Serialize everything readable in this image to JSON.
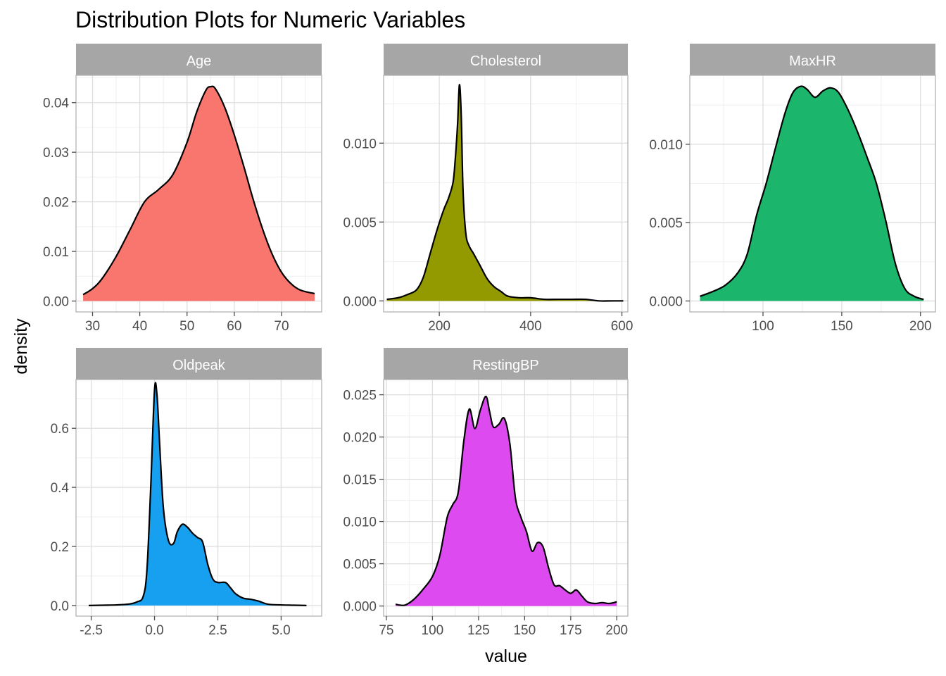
{
  "title": "Distribution Plots for Numeric Variables",
  "xlabel": "value",
  "ylabel": "density",
  "colors": {
    "strip_bg": "#a6a6a6",
    "panel_border": "#b3b3b3",
    "grid_major": "#dedede",
    "grid_minor": "#efefef",
    "curve": "#000000"
  },
  "chart_data": [
    {
      "type": "area",
      "name": "Age",
      "color": "#F8766D",
      "xlim": [
        26.5,
        78.5
      ],
      "ylim": [
        -0.0022,
        0.0455
      ],
      "x_ticks": [
        30,
        40,
        50,
        60,
        70
      ],
      "x_tick_labels": [
        "30",
        "40",
        "50",
        "60",
        "70"
      ],
      "y_ticks": [
        0,
        0.01,
        0.02,
        0.03,
        0.04
      ],
      "y_tick_labels": [
        "0.00",
        "0.01",
        "0.02",
        "0.03",
        "0.04"
      ],
      "x": [
        28,
        30,
        32,
        35,
        38,
        41,
        44,
        47,
        50,
        52,
        54,
        55,
        56,
        58,
        60,
        62,
        64,
        66,
        68,
        70,
        72,
        74,
        77
      ],
      "y": [
        0.0013,
        0.0025,
        0.0045,
        0.009,
        0.0145,
        0.02,
        0.0225,
        0.0255,
        0.032,
        0.038,
        0.0425,
        0.0432,
        0.0428,
        0.039,
        0.0335,
        0.0272,
        0.0205,
        0.0145,
        0.0095,
        0.0058,
        0.0035,
        0.0022,
        0.0015
      ]
    },
    {
      "type": "area",
      "name": "Cholesterol",
      "color": "#939A00",
      "xlim": [
        78,
        613
      ],
      "ylim": [
        -0.0007,
        0.0143
      ],
      "x_ticks": [
        200,
        400,
        600
      ],
      "x_tick_labels": [
        "200",
        "400",
        "600"
      ],
      "y_ticks": [
        0,
        0.005,
        0.01
      ],
      "y_tick_labels": [
        "0.000",
        "0.005",
        "0.010"
      ],
      "x": [
        85,
        110,
        130,
        150,
        165,
        180,
        195,
        210,
        220,
        230,
        235,
        240,
        244,
        248,
        252,
        258,
        265,
        275,
        290,
        305,
        320,
        335,
        350,
        375,
        400,
        430,
        460,
        490,
        520,
        550,
        580,
        603
      ],
      "y": [
        0.0001,
        0.0002,
        0.0004,
        0.0007,
        0.0015,
        0.003,
        0.0045,
        0.0058,
        0.0065,
        0.0075,
        0.009,
        0.0112,
        0.0137,
        0.0118,
        0.007,
        0.0043,
        0.0035,
        0.003,
        0.0022,
        0.0014,
        0.0009,
        0.0006,
        0.0003,
        0.0002,
        0.0002,
        0.0001,
        0.0001,
        0.0001,
        0.0001,
        0.0,
        0.0,
        0.0
      ]
    },
    {
      "type": "area",
      "name": "MaxHR",
      "color": "#1BB56C",
      "xlim": [
        53.5,
        209.5
      ],
      "ylim": [
        -0.0007,
        0.0144
      ],
      "x_ticks": [
        100,
        150,
        200
      ],
      "x_tick_labels": [
        "100",
        "150",
        "200"
      ],
      "y_ticks": [
        0,
        0.005,
        0.01
      ],
      "y_tick_labels": [
        "0.000",
        "0.005",
        "0.010"
      ],
      "x": [
        60,
        68,
        76,
        84,
        90,
        96,
        102,
        108,
        114,
        119,
        124,
        128,
        133,
        138,
        143,
        148,
        154,
        160,
        166,
        172,
        178,
        184,
        190,
        196,
        202
      ],
      "y": [
        0.0003,
        0.0006,
        0.001,
        0.0018,
        0.003,
        0.0055,
        0.0075,
        0.0098,
        0.012,
        0.0133,
        0.0137,
        0.0135,
        0.013,
        0.0134,
        0.0136,
        0.0133,
        0.0122,
        0.0108,
        0.0092,
        0.0075,
        0.0051,
        0.0024,
        0.0008,
        0.0003,
        0.0001
      ]
    },
    {
      "type": "area",
      "name": "Oldpeak",
      "color": "#17A0F0",
      "xlim": [
        -3.1,
        6.6
      ],
      "ylim": [
        -0.036,
        0.765
      ],
      "x_ticks": [
        -2.5,
        0,
        2.5,
        5
      ],
      "x_tick_labels": [
        "-2.5",
        "0.0",
        "2.5",
        "5.0"
      ],
      "y_ticks": [
        0,
        0.2,
        0.4,
        0.6
      ],
      "y_tick_labels": [
        "0.0",
        "0.2",
        "0.4",
        "0.6"
      ],
      "x": [
        -2.6,
        -2.0,
        -1.5,
        -1.0,
        -0.7,
        -0.45,
        -0.3,
        -0.15,
        0.0,
        0.1,
        0.2,
        0.35,
        0.55,
        0.75,
        0.9,
        1.1,
        1.3,
        1.5,
        1.7,
        1.9,
        2.1,
        2.3,
        2.5,
        2.8,
        3.0,
        3.2,
        3.5,
        3.8,
        4.1,
        4.5,
        5.0,
        5.5,
        6.0
      ],
      "y": [
        0.0,
        0.001,
        0.002,
        0.005,
        0.012,
        0.03,
        0.12,
        0.4,
        0.73,
        0.71,
        0.55,
        0.33,
        0.22,
        0.21,
        0.25,
        0.275,
        0.265,
        0.245,
        0.23,
        0.215,
        0.14,
        0.09,
        0.078,
        0.078,
        0.06,
        0.04,
        0.025,
        0.021,
        0.015,
        0.004,
        0.002,
        0.001,
        0.0
      ]
    },
    {
      "type": "area",
      "name": "RestingBP",
      "color": "#DD4AF0",
      "xlim": [
        73.5,
        206
      ],
      "ylim": [
        -0.0012,
        0.0268
      ],
      "x_ticks": [
        75,
        100,
        125,
        150,
        175,
        200
      ],
      "x_tick_labels": [
        "75",
        "100",
        "125",
        "150",
        "175",
        "200"
      ],
      "y_ticks": [
        0,
        0.005,
        0.01,
        0.015,
        0.02,
        0.025
      ],
      "y_tick_labels": [
        "0.000",
        "0.005",
        "0.010",
        "0.015",
        "0.020",
        "0.025"
      ],
      "x": [
        80,
        85,
        90,
        95,
        100,
        104,
        108,
        111,
        114,
        117,
        120,
        123,
        126,
        129,
        131,
        133,
        136,
        139,
        142,
        145,
        148,
        151,
        154,
        157,
        160,
        163,
        166,
        169,
        172,
        175,
        178,
        181,
        184,
        188,
        192,
        196,
        200
      ],
      "y": [
        0.0002,
        0.0001,
        0.0008,
        0.002,
        0.0035,
        0.006,
        0.0105,
        0.012,
        0.0135,
        0.0195,
        0.0233,
        0.021,
        0.0232,
        0.0248,
        0.023,
        0.0212,
        0.0215,
        0.0222,
        0.0192,
        0.0128,
        0.0105,
        0.0088,
        0.0065,
        0.0075,
        0.007,
        0.0045,
        0.0025,
        0.0024,
        0.0019,
        0.0015,
        0.0019,
        0.0012,
        0.0005,
        0.0003,
        0.0004,
        0.0003,
        0.0005
      ]
    }
  ]
}
